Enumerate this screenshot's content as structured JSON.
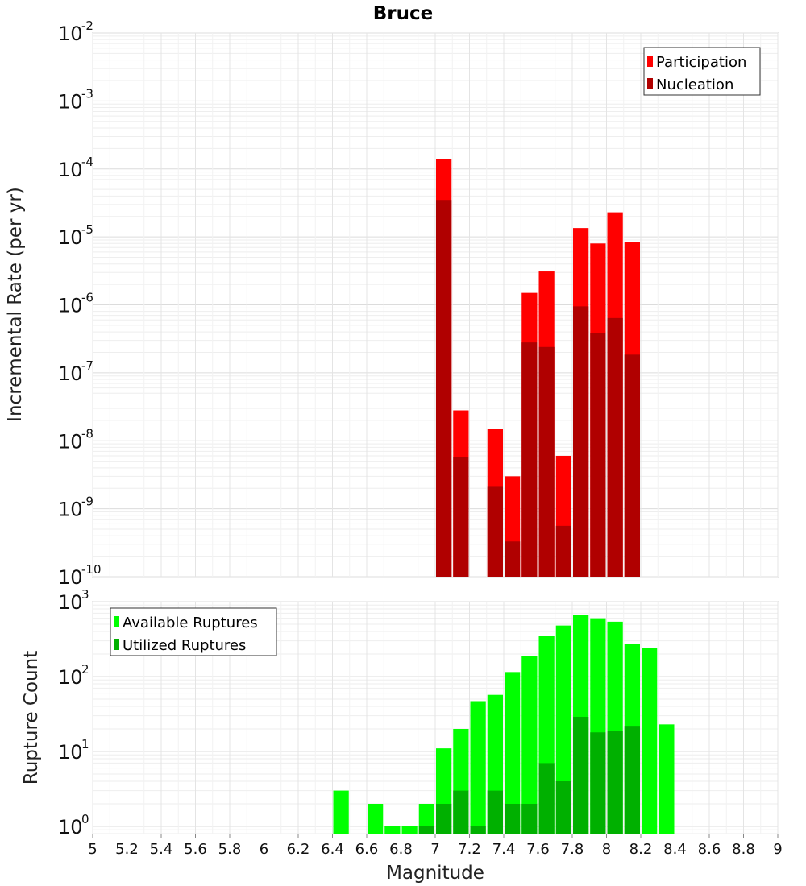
{
  "title": "Bruce",
  "chart_data": [
    {
      "name": "rate-panel",
      "type": "bar",
      "title": "Bruce",
      "xlabel": "",
      "ylabel": "Incremental Rate (per yr)",
      "yscale": "log",
      "ylim": [
        1e-10,
        0.01
      ],
      "xlim": [
        5,
        9
      ],
      "yticks": [
        {
          "base": "10",
          "exp": "-2"
        },
        {
          "base": "10",
          "exp": "-3"
        },
        {
          "base": "10",
          "exp": "-4"
        },
        {
          "base": "10",
          "exp": "-5"
        },
        {
          "base": "10",
          "exp": "-6"
        },
        {
          "base": "10",
          "exp": "-7"
        },
        {
          "base": "10",
          "exp": "-8"
        },
        {
          "base": "10",
          "exp": "-9"
        },
        {
          "base": "10",
          "exp": "-10"
        }
      ],
      "grid": true,
      "legend_position": "top-right",
      "bin_width": 0.1,
      "series": [
        {
          "name": "Participation",
          "color": "#ff0000",
          "x": [
            7.05,
            7.15,
            7.35,
            7.45,
            7.55,
            7.65,
            7.75,
            7.85,
            7.95,
            8.05,
            8.15
          ],
          "values": [
            0.00014,
            2.8e-08,
            1.5e-08,
            3e-09,
            1.5e-06,
            3.1e-06,
            6e-09,
            1.35e-05,
            8e-06,
            2.3e-05,
            8.3e-06
          ]
        },
        {
          "name": "Nucleation",
          "color": "#b00000",
          "x": [
            7.05,
            7.15,
            7.35,
            7.45,
            7.55,
            7.65,
            7.75,
            7.85,
            7.95,
            8.05,
            8.15
          ],
          "values": [
            3.5e-05,
            5.8e-09,
            2.1e-09,
            3.3e-10,
            2.8e-07,
            2.4e-07,
            5.6e-10,
            9.5e-07,
            3.8e-07,
            6.4e-07,
            1.85e-07
          ]
        }
      ]
    },
    {
      "name": "count-panel",
      "type": "bar",
      "title": "",
      "xlabel": "Magnitude",
      "ylabel": "Rupture Count",
      "yscale": "log",
      "ylim": [
        0.8,
        1000
      ],
      "xlim": [
        5,
        9
      ],
      "yticks": [
        {
          "value": 1000,
          "base": "10",
          "exp": "3"
        },
        {
          "value": 100,
          "base": "10",
          "exp": "2"
        },
        {
          "value": 10,
          "base": "10",
          "exp": "1"
        },
        {
          "value": 1,
          "base": "10",
          "exp": "0"
        }
      ],
      "xticks": [
        "5",
        "5.2",
        "5.4",
        "5.6",
        "5.8",
        "6",
        "6.2",
        "6.4",
        "6.6",
        "6.8",
        "7",
        "7.2",
        "7.4",
        "7.6",
        "7.8",
        "8",
        "8.2",
        "8.4",
        "8.6",
        "8.8",
        "9"
      ],
      "grid": true,
      "legend_position": "top-left",
      "bin_width": 0.1,
      "series": [
        {
          "name": "Available Ruptures",
          "color": "#00ff00",
          "x": [
            6.45,
            6.65,
            6.75,
            6.85,
            6.95,
            7.05,
            7.15,
            7.25,
            7.35,
            7.45,
            7.55,
            7.65,
            7.75,
            7.85,
            7.95,
            8.05,
            8.15,
            8.25,
            8.35
          ],
          "values": [
            3,
            2,
            1,
            1,
            2,
            11,
            20,
            47,
            57,
            115,
            190,
            350,
            480,
            660,
            600,
            540,
            270,
            240,
            23
          ]
        },
        {
          "name": "Utilized Ruptures",
          "color": "#00b000",
          "x": [
            6.95,
            7.05,
            7.15,
            7.25,
            7.35,
            7.45,
            7.55,
            7.65,
            7.75,
            7.85,
            7.95,
            8.05,
            8.15
          ],
          "values": [
            1,
            2,
            3,
            1,
            3,
            2,
            2,
            7,
            4,
            29,
            18,
            19,
            22
          ]
        }
      ]
    }
  ]
}
